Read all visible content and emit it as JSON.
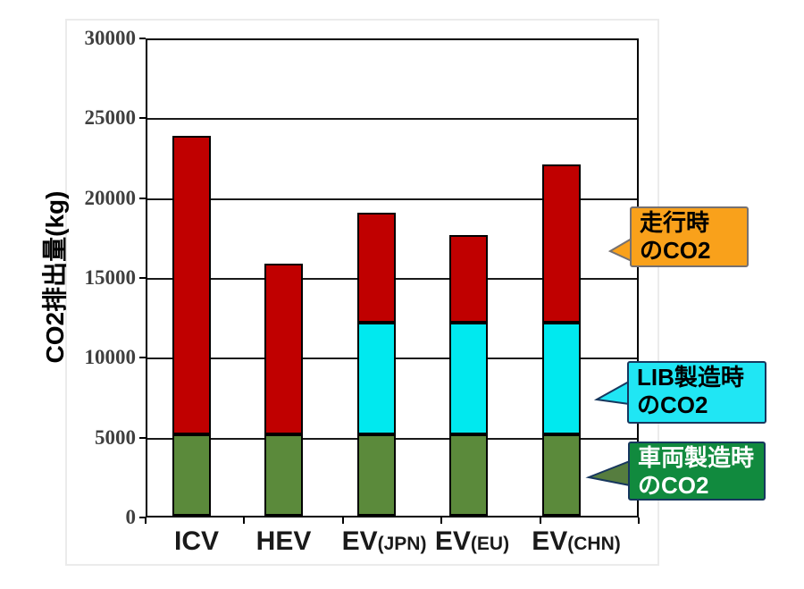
{
  "chart_data": {
    "type": "bar",
    "stacked": true,
    "title": "",
    "ylabel": "CO2排出量(kg)",
    "ylim": [
      0,
      30000
    ],
    "ytick_step": 5000,
    "yticks": [
      "0",
      "5000",
      "10000",
      "15000",
      "20000",
      "25000",
      "30000"
    ],
    "grid": true,
    "legend_position": "right-callouts",
    "categories": [
      {
        "main": "ICV",
        "sub": ""
      },
      {
        "main": "HEV",
        "sub": ""
      },
      {
        "main": "EV",
        "sub": "(JPN)"
      },
      {
        "main": "EV",
        "sub": "(EU)"
      },
      {
        "main": "EV",
        "sub": "(CHN)"
      }
    ],
    "series": [
      {
        "name": "車両製造時のCO2",
        "color": "#5B8A3B",
        "values": [
          5200,
          5200,
          5200,
          5200,
          5200
        ]
      },
      {
        "name": "LIB製造時のCO2",
        "color": "#00E9EF",
        "values": [
          0,
          0,
          7000,
          7000,
          7000
        ]
      },
      {
        "name": "走行時のCO2",
        "color": "#C00000",
        "values": [
          18700,
          10700,
          6900,
          5500,
          9900
        ]
      }
    ],
    "totals": [
      23900,
      15900,
      19100,
      17700,
      22100
    ],
    "axis_color": "#000000",
    "tick_label_color": "#3F3F3F"
  },
  "callouts": [
    {
      "id": "driving-co2",
      "line1": "走行時",
      "line2": "のCO2",
      "fill": "#F9A11B",
      "border": "#767171",
      "text": "#000000",
      "tail_fill": "#F9A11B"
    },
    {
      "id": "lib-manufacturing-co2",
      "line1": "LIB製造時",
      "line2": "のCO2",
      "fill": "#20E6F4",
      "border": "#17375E",
      "text": "#000000",
      "tail_fill": "#20E6F4"
    },
    {
      "id": "vehicle-manufacturing-co2",
      "line1": "車両製造時",
      "line2": "のCO2",
      "fill": "#118A3E",
      "border": "#17375E",
      "text": "#FFFFFF",
      "tail_fill": "#567D3F"
    }
  ]
}
